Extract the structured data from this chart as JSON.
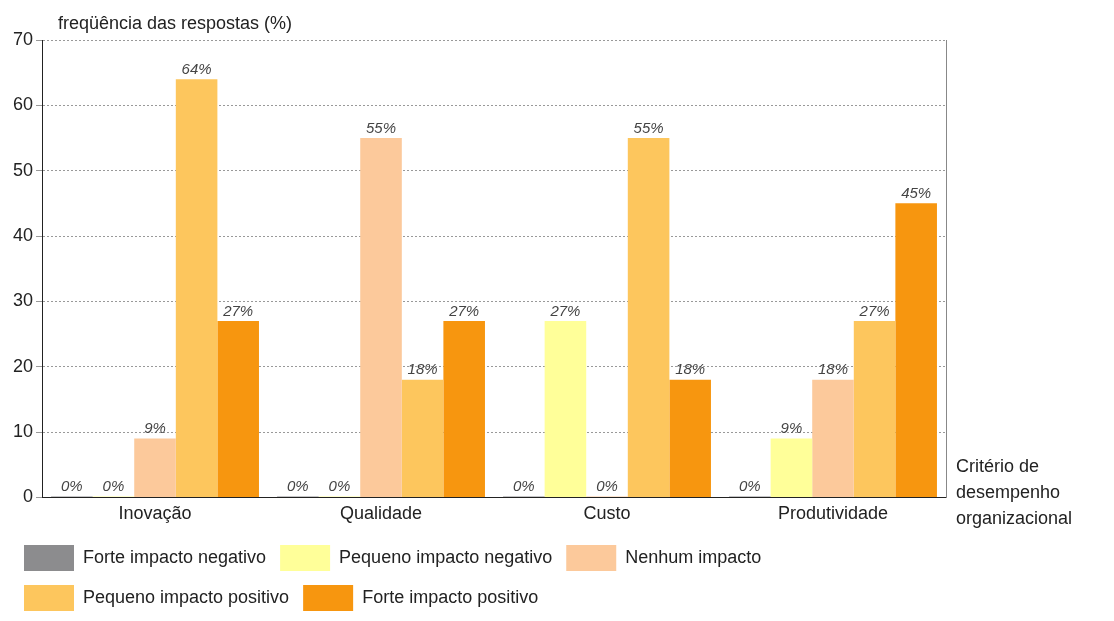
{
  "chart_data": {
    "type": "bar",
    "ylabel": "freqüência das respostas (%)",
    "xlabel": "Critério de desempenho organizacional",
    "categories": [
      "Inovação",
      "Qualidade",
      "Custo",
      "Produtividade"
    ],
    "ylim": [
      0,
      70
    ],
    "yticks": [
      0,
      10,
      20,
      30,
      40,
      50,
      60,
      70
    ],
    "grid": "y",
    "legend": "bottom",
    "series": [
      {
        "name": "Forte impacto negativo",
        "color": "#8c8c8e",
        "values": [
          0,
          0,
          0,
          0
        ],
        "value_labels": [
          "0%",
          "0%",
          "0%",
          "0%"
        ]
      },
      {
        "name": "Pequeno impacto negativo",
        "color": "#ffff99",
        "values": [
          0,
          0,
          27,
          9
        ],
        "value_labels": [
          "0%",
          "0%",
          "27%",
          "9%"
        ]
      },
      {
        "name": "Nenhum impacto",
        "color": "#fcc99b",
        "values": [
          9,
          55,
          0,
          18
        ],
        "value_labels": [
          "9%",
          "55%",
          "0%",
          "18%"
        ]
      },
      {
        "name": "Pequeno impacto positivo",
        "color": "#fdc65d",
        "values": [
          64,
          18,
          55,
          27
        ],
        "value_labels": [
          "64%",
          "18%",
          "55%",
          "27%"
        ]
      },
      {
        "name": "Forte impacto positivo",
        "color": "#f7960f",
        "values": [
          27,
          27,
          18,
          45
        ],
        "value_labels": [
          "27%",
          "27%",
          "18%",
          "45%"
        ]
      }
    ]
  }
}
